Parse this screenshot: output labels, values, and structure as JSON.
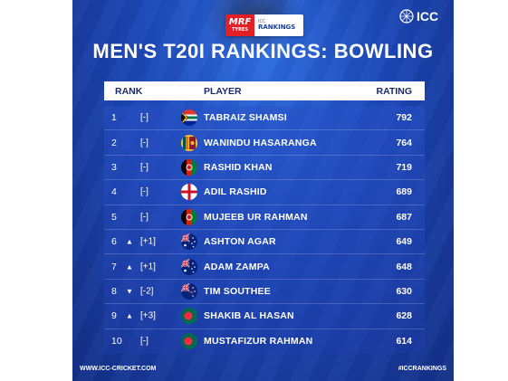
{
  "sponsor": {
    "mrf_main": "MRF",
    "mrf_sub": "TYRES",
    "icc_small": "ICC",
    "rankings": "RANKINGS"
  },
  "logo": {
    "text": "ICC"
  },
  "title": "MEN'S T20I RANKINGS: BOWLING",
  "table": {
    "headers": {
      "rank": "RANK",
      "player": "PLAYER",
      "rating": "RATING"
    },
    "rows": [
      {
        "rank": "1",
        "arrow": "",
        "move": "[-]",
        "flag": "south-africa",
        "name": "TABRAIZ SHAMSI",
        "rating": "792"
      },
      {
        "rank": "2",
        "arrow": "",
        "move": "[-]",
        "flag": "sri-lanka",
        "name": "WANINDU HASARANGA",
        "rating": "764"
      },
      {
        "rank": "3",
        "arrow": "",
        "move": "[-]",
        "flag": "afghanistan",
        "name": "RASHID KHAN",
        "rating": "719"
      },
      {
        "rank": "4",
        "arrow": "",
        "move": "[-]",
        "flag": "england",
        "name": "ADIL RASHID",
        "rating": "689"
      },
      {
        "rank": "5",
        "arrow": "",
        "move": "[-]",
        "flag": "afghanistan",
        "name": "MUJEEB UR RAHMAN",
        "rating": "687"
      },
      {
        "rank": "6",
        "arrow": "▲",
        "move": "[+1]",
        "flag": "australia",
        "name": "ASHTON AGAR",
        "rating": "649"
      },
      {
        "rank": "7",
        "arrow": "▲",
        "move": "[+1]",
        "flag": "australia",
        "name": "ADAM ZAMPA",
        "rating": "648"
      },
      {
        "rank": "8",
        "arrow": "▼",
        "move": "[-2]",
        "flag": "new-zealand",
        "name": "TIM SOUTHEE",
        "rating": "630"
      },
      {
        "rank": "9",
        "arrow": "▲",
        "move": "[+3]",
        "flag": "bangladesh",
        "name": "SHAKIB AL HASAN",
        "rating": "628"
      },
      {
        "rank": "10",
        "arrow": "",
        "move": "[-]",
        "flag": "bangladesh",
        "name": "MUSTAFIZUR RAHMAN",
        "rating": "614"
      }
    ]
  },
  "footer": {
    "left": "WWW.ICC-CRICKET.COM",
    "right": "#ICCRANKINGS"
  },
  "colors": {
    "background": "#1c47b6",
    "sponsor_red": "#e41f26",
    "header_text": "#1b2a6b"
  }
}
